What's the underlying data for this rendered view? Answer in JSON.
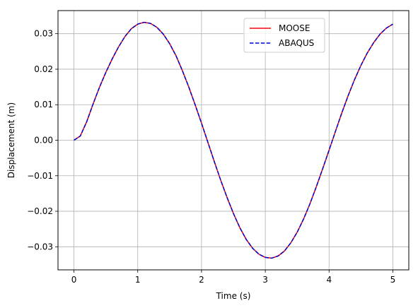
{
  "chart_data": {
    "type": "line",
    "title": "",
    "xlabel": "Time (s)",
    "ylabel": "Displacement (m)",
    "xlim": [
      -0.25,
      5.25
    ],
    "ylim": [
      -0.0365,
      0.0365
    ],
    "grid": true,
    "legend_position": "top-center",
    "x_ticks": [
      0,
      1,
      2,
      3,
      4,
      5
    ],
    "x_tick_labels": [
      "0",
      "1",
      "2",
      "3",
      "4",
      "5"
    ],
    "y_ticks": [
      0.03,
      0.02,
      0.01,
      0.0,
      -0.01,
      -0.02,
      -0.03
    ],
    "y_tick_labels": [
      "0.03",
      "0.02",
      "0.01",
      "0.00",
      "−0.01",
      "−0.02",
      "−0.03"
    ],
    "x": [
      0.0,
      0.1,
      0.2,
      0.3,
      0.4,
      0.5,
      0.6,
      0.7,
      0.8,
      0.9,
      1.0,
      1.1,
      1.2,
      1.3,
      1.4,
      1.5,
      1.6,
      1.7,
      1.8,
      1.9,
      2.0,
      2.1,
      2.2,
      2.3,
      2.4,
      2.5,
      2.6,
      2.7,
      2.8,
      2.9,
      3.0,
      3.1,
      3.2,
      3.3,
      3.4,
      3.5,
      3.6,
      3.7,
      3.8,
      3.9,
      4.0,
      4.1,
      4.2,
      4.3,
      4.4,
      4.5,
      4.6,
      4.7,
      4.8,
      4.9,
      5.0
    ],
    "series": [
      {
        "name": "MOOSE",
        "color": "#ff0000",
        "style": "solid",
        "values": [
          0.0,
          0.0012,
          0.0052,
          0.0102,
          0.0149,
          0.0191,
          0.0229,
          0.0263,
          0.0292,
          0.0314,
          0.0327,
          0.0332,
          0.0329,
          0.0318,
          0.0299,
          0.0272,
          0.0238,
          0.0196,
          0.015,
          0.01,
          0.0048,
          -0.0006,
          -0.006,
          -0.0112,
          -0.0161,
          -0.0206,
          -0.0246,
          -0.0279,
          -0.0304,
          -0.0321,
          -0.033,
          -0.0332,
          -0.0326,
          -0.0312,
          -0.0289,
          -0.0259,
          -0.0222,
          -0.0179,
          -0.0131,
          -0.008,
          -0.0028,
          0.0025,
          0.0077,
          0.0126,
          0.0171,
          0.0211,
          0.0246,
          0.0275,
          0.0299,
          0.0316,
          0.0327
        ]
      },
      {
        "name": "ABAQUS",
        "color": "#0000cc",
        "style": "dashed",
        "values": [
          0.0,
          0.0012,
          0.0052,
          0.0102,
          0.0149,
          0.0191,
          0.0229,
          0.0263,
          0.0292,
          0.0314,
          0.0327,
          0.0332,
          0.0329,
          0.0318,
          0.0299,
          0.0272,
          0.0238,
          0.0196,
          0.015,
          0.01,
          0.0048,
          -0.0006,
          -0.006,
          -0.0112,
          -0.0161,
          -0.0206,
          -0.0246,
          -0.0279,
          -0.0304,
          -0.0321,
          -0.033,
          -0.0332,
          -0.0326,
          -0.0312,
          -0.0289,
          -0.0259,
          -0.0222,
          -0.0179,
          -0.0131,
          -0.008,
          -0.0028,
          0.0025,
          0.0077,
          0.0126,
          0.0171,
          0.0211,
          0.0246,
          0.0275,
          0.0299,
          0.0316,
          0.0327
        ]
      }
    ]
  }
}
